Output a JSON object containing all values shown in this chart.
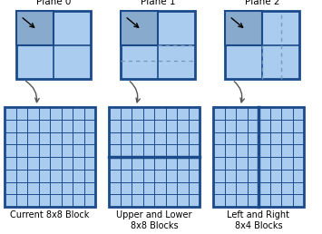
{
  "bg_color": "#ffffff",
  "light_blue": "#aaccee",
  "dark_blue": "#1a4a8a",
  "darker_quad": "#88aacc",
  "dashed_color": "#7799bb",
  "plane_labels": [
    "Plane 0",
    "Plane 1",
    "Plane 2"
  ],
  "bottom_labels": [
    [
      "Current 8x8 Block"
    ],
    [
      "Upper and Lower",
      "8x8 Blocks"
    ],
    [
      "Left and Right",
      "8x4 Blocks"
    ]
  ],
  "figsize": [
    3.55,
    2.58
  ],
  "dpi": 100
}
